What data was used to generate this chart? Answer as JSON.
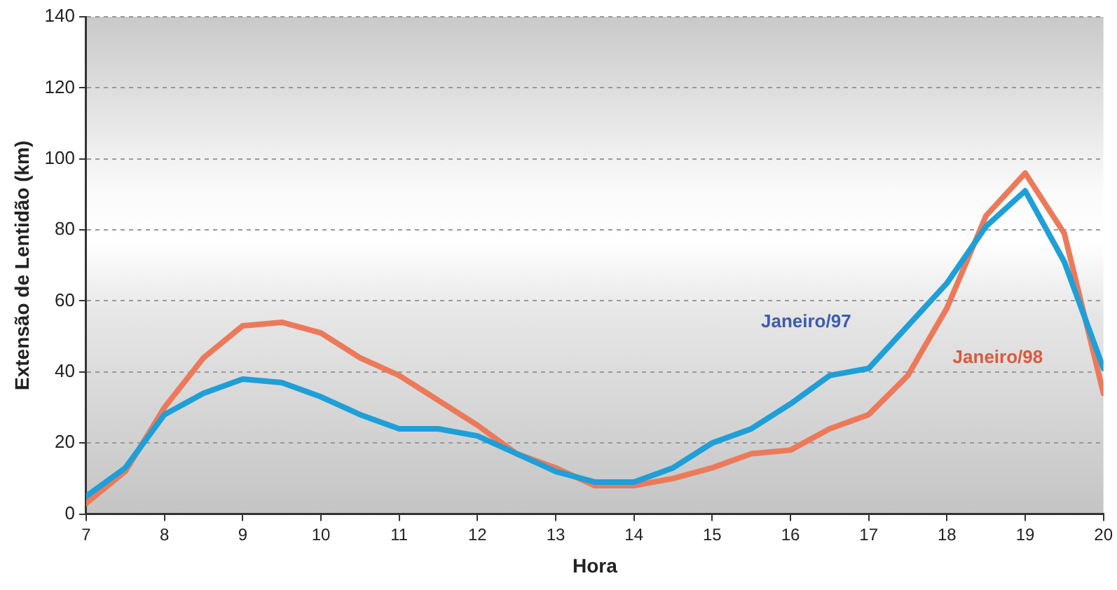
{
  "chart_data": {
    "type": "line",
    "xlabel": "Hora",
    "ylabel": "Extensão de Lentidão (km)",
    "x": [
      7,
      7.5,
      8,
      8.5,
      9,
      9.5,
      10,
      10.5,
      11,
      11.5,
      12,
      12.5,
      13,
      13.5,
      14,
      14.5,
      15,
      15.5,
      16,
      16.5,
      17,
      17.5,
      18,
      18.5,
      19,
      19.5,
      20
    ],
    "series": [
      {
        "name": "Janeiro/97",
        "color": "#1e9fd8",
        "values": [
          5,
          13,
          28,
          34,
          38,
          37,
          33,
          28,
          24,
          24,
          22,
          17,
          12,
          9,
          9,
          13,
          20,
          24,
          31,
          39,
          41,
          53,
          65,
          81,
          91,
          71,
          41
        ]
      },
      {
        "name": "Janeiro/98",
        "color": "#ec7a5a",
        "values": [
          3,
          12,
          30,
          44,
          53,
          54,
          51,
          44,
          39,
          32,
          25,
          17,
          13,
          8,
          8,
          10,
          13,
          17,
          18,
          24,
          28,
          39,
          58,
          84,
          96,
          79,
          34
        ]
      }
    ],
    "xlim": [
      7,
      20
    ],
    "xticks": [
      7,
      8,
      9,
      10,
      11,
      12,
      13,
      14,
      15,
      16,
      17,
      18,
      19,
      20
    ],
    "ylim": [
      0,
      140
    ],
    "yticks": [
      0,
      20,
      40,
      60,
      80,
      100,
      120,
      140
    ],
    "grid": "y",
    "legend": false,
    "marker": "none",
    "line_style": "solid"
  }
}
